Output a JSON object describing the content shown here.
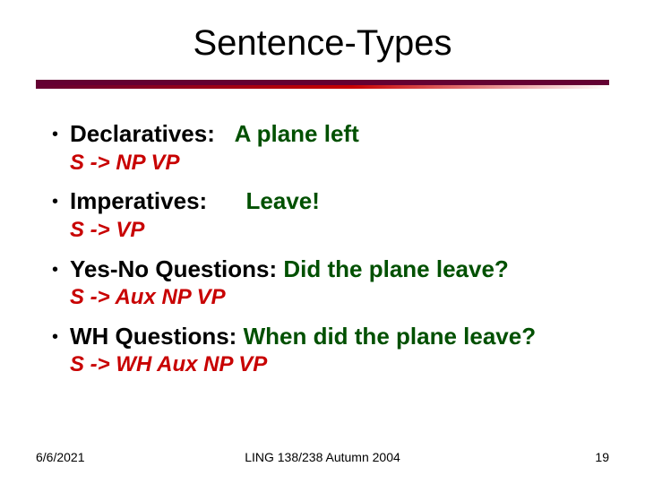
{
  "title": "Sentence-Types",
  "colors": {
    "title": "#000000",
    "label": "#000000",
    "example": "#005000",
    "rule": "#c80000",
    "underline_dark": "#640032",
    "underline_bright": "#c80000",
    "background": "#ffffff"
  },
  "typography": {
    "title_fontsize": 40,
    "bullet_fontsize": 26,
    "rule_fontsize": 24,
    "footer_fontsize": 14,
    "font_family": "Comic Sans MS"
  },
  "items": [
    {
      "label": "Declaratives:",
      "spacer": "   ",
      "example": "A plane left",
      "rule": "S -> NP VP"
    },
    {
      "label": "Imperatives:",
      "spacer": "      ",
      "example": "Leave!",
      "rule": "S -> VP"
    },
    {
      "label": "Yes-No Questions:",
      "spacer": " ",
      "example": "Did the plane leave?",
      "rule": "S -> Aux NP VP"
    },
    {
      "label": "WH Questions:",
      "spacer": " ",
      "example": "When did the plane leave?",
      "rule": "S -> WH Aux NP VP"
    }
  ],
  "footer": {
    "date": "6/6/2021",
    "course": "LING 138/238 Autumn 2004",
    "page": "19"
  }
}
